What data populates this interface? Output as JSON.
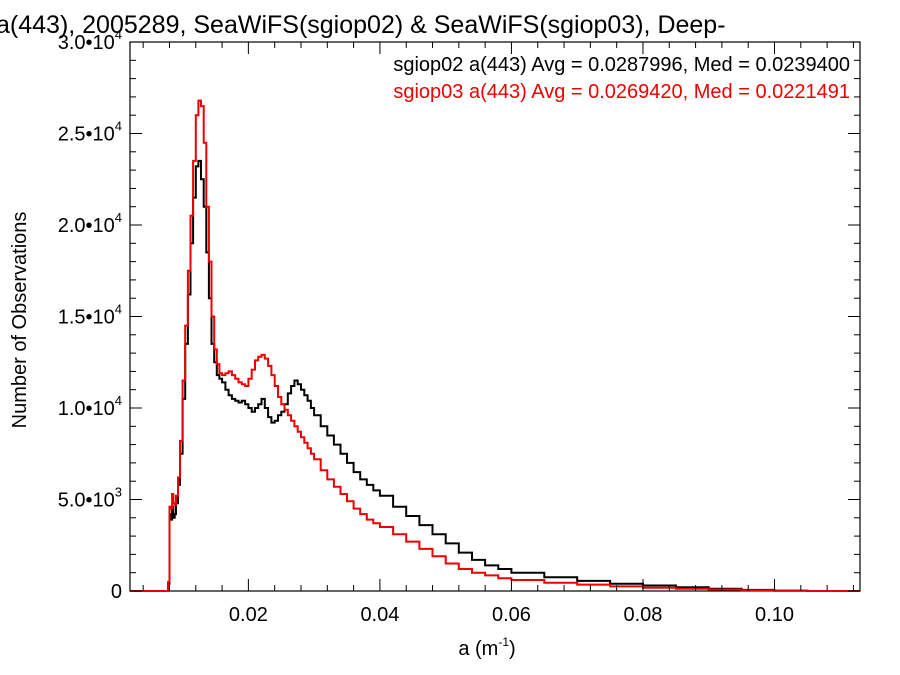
{
  "chart_data": {
    "type": "line",
    "title": "a(443), 2005289, SeaWiFS(sgiop02) & SeaWiFS(sgiop03), Deep-",
    "xlabel": "a (m",
    "xlabel_sup": "-1",
    "xlabel_suffix": ")",
    "ylabel": "Number of Observations",
    "xlim": [
      0.002,
      0.113
    ],
    "ylim": [
      0,
      30000
    ],
    "x_ticks": [
      0.02,
      0.04,
      0.06,
      0.08,
      0.1
    ],
    "x_tick_labels": [
      "0.02",
      "0.04",
      "0.06",
      "0.08",
      "0.10"
    ],
    "y_ticks": [
      {
        "value": 0,
        "mant": "0",
        "exp": ""
      },
      {
        "value": 5000,
        "mant": "5.0•10",
        "exp": "3"
      },
      {
        "value": 10000,
        "mant": "1.0•10",
        "exp": "4"
      },
      {
        "value": 15000,
        "mant": "1.5•10",
        "exp": "4"
      },
      {
        "value": 20000,
        "mant": "2.0•10",
        "exp": "4"
      },
      {
        "value": 25000,
        "mant": "2.5•10",
        "exp": "4"
      },
      {
        "value": 30000,
        "mant": "3.0•10",
        "exp": "4"
      }
    ],
    "step": "histogram",
    "legend_position": "top-right",
    "annotations": [
      {
        "text": "sgiop02 a(443) Avg = 0.0287996, Med = 0.0239400",
        "color": "#000000"
      },
      {
        "text": "sgiop03 a(443) Avg = 0.0269420, Med = 0.0221491",
        "color": "#ee0000"
      }
    ],
    "series": [
      {
        "color": "#000000",
        "x": [
          0.002,
          0.0074,
          0.0076,
          0.0078,
          0.008,
          0.0082,
          0.0084,
          0.0086,
          0.0088,
          0.009,
          0.0093,
          0.0096,
          0.01,
          0.0104,
          0.0108,
          0.0112,
          0.0116,
          0.012,
          0.0124,
          0.0128,
          0.0132,
          0.0136,
          0.014,
          0.0144,
          0.0148,
          0.0152,
          0.0156,
          0.016,
          0.0165,
          0.017,
          0.0175,
          0.018,
          0.0185,
          0.019,
          0.0195,
          0.02,
          0.0205,
          0.021,
          0.0215,
          0.022,
          0.0225,
          0.023,
          0.0235,
          0.024,
          0.0245,
          0.025,
          0.0255,
          0.026,
          0.0265,
          0.027,
          0.0275,
          0.028,
          0.0285,
          0.029,
          0.0295,
          0.03,
          0.031,
          0.032,
          0.033,
          0.034,
          0.035,
          0.036,
          0.037,
          0.038,
          0.039,
          0.04,
          0.042,
          0.044,
          0.046,
          0.048,
          0.05,
          0.052,
          0.054,
          0.056,
          0.058,
          0.06,
          0.065,
          0.07,
          0.075,
          0.08,
          0.085,
          0.09,
          0.095,
          0.1,
          0.105,
          0.11,
          0.113
        ],
        "y": [
          0,
          0,
          0,
          400,
          4200,
          3900,
          4600,
          4000,
          4200,
          4800,
          5800,
          7500,
          10500,
          13500,
          16200,
          19000,
          21500,
          23200,
          23500,
          22500,
          21000,
          18500,
          16000,
          13500,
          12500,
          11800,
          11600,
          11400,
          11000,
          10700,
          10500,
          10400,
          10300,
          10400,
          10200,
          10000,
          9800,
          10000,
          10200,
          10500,
          10000,
          9500,
          9200,
          9300,
          9600,
          9800,
          10200,
          10800,
          11200,
          11500,
          11300,
          11000,
          10700,
          10400,
          10000,
          9600,
          9000,
          8500,
          8000,
          7500,
          7000,
          6500,
          6100,
          5800,
          5500,
          5200,
          4600,
          4100,
          3600,
          3100,
          2600,
          2100,
          1700,
          1400,
          1200,
          1000,
          750,
          550,
          400,
          300,
          200,
          120,
          60,
          20,
          0,
          0,
          0
        ]
      },
      {
        "color": "#ee0000",
        "x": [
          0.002,
          0.0074,
          0.0076,
          0.0078,
          0.008,
          0.0082,
          0.0084,
          0.0086,
          0.0088,
          0.009,
          0.0093,
          0.0096,
          0.01,
          0.0104,
          0.0108,
          0.0112,
          0.0116,
          0.012,
          0.0124,
          0.0128,
          0.0132,
          0.0136,
          0.014,
          0.0144,
          0.0148,
          0.0152,
          0.0156,
          0.016,
          0.0165,
          0.017,
          0.0175,
          0.018,
          0.0185,
          0.019,
          0.0195,
          0.02,
          0.0205,
          0.021,
          0.0215,
          0.022,
          0.0225,
          0.023,
          0.0235,
          0.024,
          0.0245,
          0.025,
          0.0255,
          0.026,
          0.0265,
          0.027,
          0.0275,
          0.028,
          0.0285,
          0.029,
          0.0295,
          0.03,
          0.031,
          0.032,
          0.033,
          0.034,
          0.035,
          0.036,
          0.037,
          0.038,
          0.039,
          0.04,
          0.042,
          0.044,
          0.046,
          0.048,
          0.05,
          0.052,
          0.054,
          0.056,
          0.058,
          0.06,
          0.065,
          0.07,
          0.075,
          0.08,
          0.085,
          0.09,
          0.095,
          0.1,
          0.105,
          0.11,
          0.113
        ],
        "y": [
          0,
          0,
          0,
          500,
          4600,
          4500,
          5300,
          4800,
          4700,
          5200,
          6200,
          8200,
          11500,
          14500,
          17500,
          20500,
          23500,
          26000,
          26800,
          26500,
          24500,
          21000,
          18000,
          15000,
          13200,
          12400,
          11900,
          11800,
          11900,
          12000,
          11800,
          11600,
          11400,
          11300,
          11200,
          11600,
          12100,
          12600,
          12800,
          12900,
          12700,
          12300,
          11800,
          11200,
          10600,
          10200,
          9900,
          9600,
          9300,
          9000,
          8700,
          8400,
          8100,
          7800,
          7500,
          7200,
          6600,
          6100,
          5700,
          5300,
          4900,
          4500,
          4200,
          3900,
          3700,
          3500,
          3100,
          2700,
          2300,
          1900,
          1500,
          1200,
          1000,
          850,
          700,
          600,
          450,
          350,
          250,
          180,
          120,
          80,
          40,
          10,
          0,
          0,
          0
        ]
      }
    ]
  }
}
